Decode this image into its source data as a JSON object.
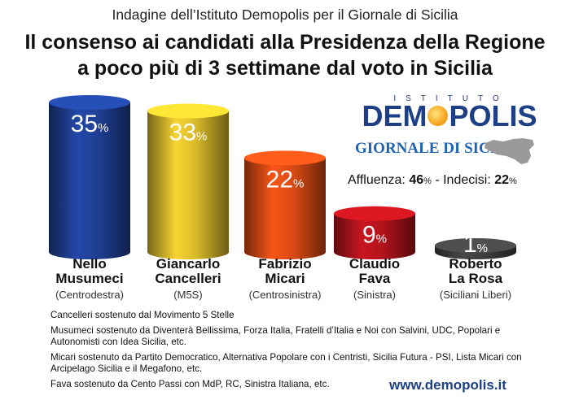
{
  "header": {
    "subtitle": "Indagine dell’Istituto Demopolis per il Giornale di Sicilia",
    "title_line1": "Il consenso ai candidati alla Presidenza della Regione",
    "title_line2": "a poco più di 3 settimane dal voto in Sicilia"
  },
  "chart_data": {
    "type": "bar",
    "title": "Il consenso ai candidati alla Presidenza della Regione a poco più di 3 settimane dal voto in Sicilia",
    "categories": [
      "Nello Musumeci",
      "Giancarlo Cancelleri",
      "Fabrizio Micari",
      "Claudio Fava",
      "Roberto La Rosa"
    ],
    "values": [
      35,
      33,
      22,
      9,
      1
    ],
    "value_suffix": "%",
    "ylim": [
      0,
      35
    ],
    "grid": false,
    "bar_colors": [
      "#1f3f93",
      "#d7b92a",
      "#d84a14",
      "#b0131c",
      "#3f3f3f"
    ]
  },
  "candidates": [
    {
      "first": "Nello",
      "last": "Musumeci",
      "party": "(Centrodestra)",
      "value_num": "35",
      "pct": "%"
    },
    {
      "first": "Giancarlo",
      "last": "Cancelleri",
      "party": "(M5S)",
      "value_num": "33",
      "pct": "%"
    },
    {
      "first": "Fabrizio",
      "last": "Micari",
      "party": "(Centrosinistra)",
      "value_num": "22",
      "pct": "%"
    },
    {
      "first": "Claudio",
      "last": "Fava",
      "party": "(Sinistra)",
      "value_num": "9",
      "pct": "%"
    },
    {
      "first": "Roberto",
      "last": "La Rosa",
      "party": "(Siciliani Liberi)",
      "value_num": "1",
      "pct": "%"
    }
  ],
  "logo": {
    "istituto": "ISTITUTO",
    "demopolis_pre": "DEM",
    "demopolis_post": "POLIS",
    "giornale": "GIORNALE DI SICILIA"
  },
  "turnout": {
    "affluenza_label": "Affluenza: ",
    "affluenza_value": "46",
    "affluenza_pct": "%",
    "separator": " - ",
    "indecisi_label": "Indecisi: ",
    "indecisi_value": "22",
    "indecisi_pct": "%"
  },
  "notes": [
    {
      "who": "Cancelleri",
      "text": " sostenuto dal Movimento 5 Stelle"
    },
    {
      "who": "Musumeci",
      "text": " sostenuto da Diventerà Bellissima, Forza Italia, Fratelli d’Italia e Noi con Salvini, UDC, Popolari e Autonomisti con Idea Sicilia, etc."
    },
    {
      "who": "Micari",
      "text": " sostenuto da Partito Democratico, Alternativa Popolare con i Centristi, Sicilia Futura - PSI, Lista Micari con Arcipelago Sicilia e il Megafono, etc."
    },
    {
      "who": "Fava",
      "text": " sostenuto da Cento Passi con MdP, RC, Sinistra Italiana, etc."
    }
  ],
  "website": "www.demopolis.it"
}
